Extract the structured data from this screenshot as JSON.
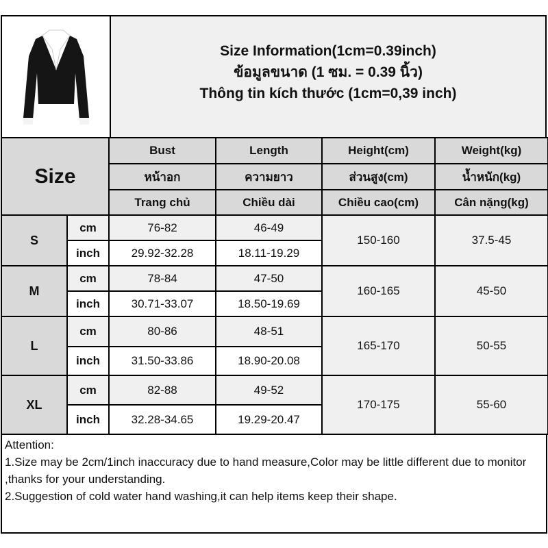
{
  "title": {
    "line1": "Size Information(1cm=0.39inch)",
    "line2": "ข้อมูลขนาด (1 ซม. = 0.39 นิ้ว)",
    "line3": "Thông tin kích thước (1cm=0,39 inch)"
  },
  "product_image": "black cardigan with white collar",
  "header": {
    "size_label": "Size",
    "columns": [
      {
        "en": "Bust",
        "th": "หน้าอก",
        "vi": "Trang chủ"
      },
      {
        "en": "Length",
        "th": "ความยาว",
        "vi": "Chiều dài"
      },
      {
        "en": "Height(cm)",
        "th": "ส่วนสูง(cm)",
        "vi": "Chiều cao(cm)"
      },
      {
        "en": "Weight(kg)",
        "th": "น้ำหนัก(kg)",
        "vi": "Cân nặng(kg)"
      }
    ]
  },
  "units": {
    "cm": "cm",
    "inch": "inch"
  },
  "rows": [
    {
      "size": "S",
      "bust_cm": "76-82",
      "length_cm": "46-49",
      "bust_in": "29.92-32.28",
      "length_in": "18.11-19.29",
      "height": "150-160",
      "weight": "37.5-45"
    },
    {
      "size": "M",
      "bust_cm": "78-84",
      "length_cm": "47-50",
      "bust_in": "30.71-33.07",
      "length_in": "18.50-19.69",
      "height": "160-165",
      "weight": "45-50"
    },
    {
      "size": "L",
      "bust_cm": "80-86",
      "length_cm": "48-51",
      "bust_in": "31.50-33.86",
      "length_in": "18.90-20.08",
      "height": "165-170",
      "weight": "50-55"
    },
    {
      "size": "XL",
      "bust_cm": "82-88",
      "length_cm": "49-52",
      "bust_in": "32.28-34.65",
      "length_in": "19.29-20.47",
      "height": "170-175",
      "weight": "55-60"
    }
  ],
  "attention": {
    "heading": "Attention:",
    "notes": [
      "1.Size may be 2cm/1inch inaccuracy due to hand measure,Color may be little different due to monitor ,thanks for your understanding.",
      "2.Suggestion of cold water hand washing,it can help items keep their shape."
    ]
  }
}
